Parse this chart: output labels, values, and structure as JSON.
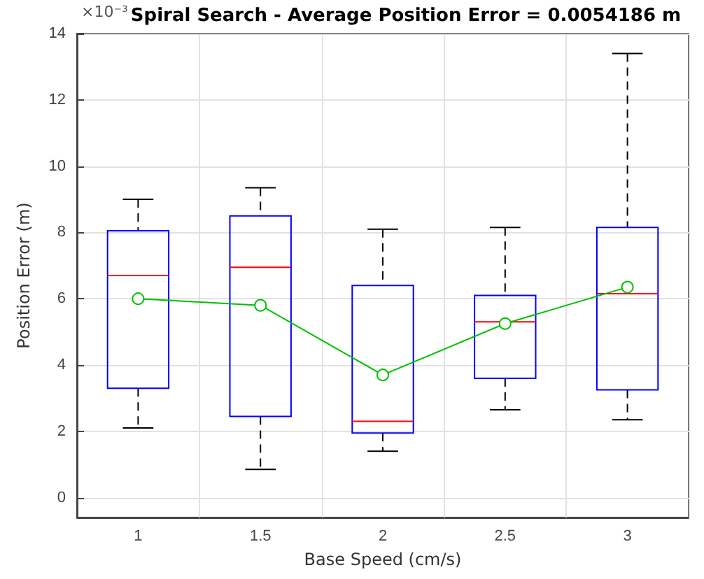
{
  "chart_data": {
    "type": "box",
    "title": "Spiral Search - Average Position Error = 0.0054186 m",
    "xlabel": "Base Speed (cm/s)",
    "ylabel": "Position Error (m)",
    "annotations": [
      "×10⁻³"
    ],
    "categories": [
      "1",
      "1.5",
      "2",
      "2.5",
      "3"
    ],
    "ylim": [
      -0.6,
      14
    ],
    "yticks": [
      0,
      2,
      4,
      6,
      8,
      10,
      12,
      14
    ],
    "grid": true,
    "series": [
      {
        "color": "#0000ff",
        "boxes": [
          {
            "low": 2.1,
            "q1": 3.3,
            "median": 6.7,
            "q3": 8.05,
            "high": 9.0
          },
          {
            "low": 0.85,
            "q1": 2.45,
            "median": 6.95,
            "q3": 8.5,
            "high": 9.35
          },
          {
            "low": 1.4,
            "q1": 1.95,
            "median": 2.3,
            "q3": 6.4,
            "high": 8.1
          },
          {
            "low": 2.65,
            "q1": 3.6,
            "median": 5.3,
            "q3": 6.1,
            "high": 8.15
          },
          {
            "low": 2.35,
            "q1": 3.25,
            "median": 6.15,
            "q3": 8.15,
            "high": 13.4
          }
        ]
      },
      {
        "type": "line",
        "color": "#00c000",
        "marker": "circle",
        "values": [
          6.0,
          5.8,
          3.7,
          5.25,
          6.35
        ]
      }
    ]
  }
}
